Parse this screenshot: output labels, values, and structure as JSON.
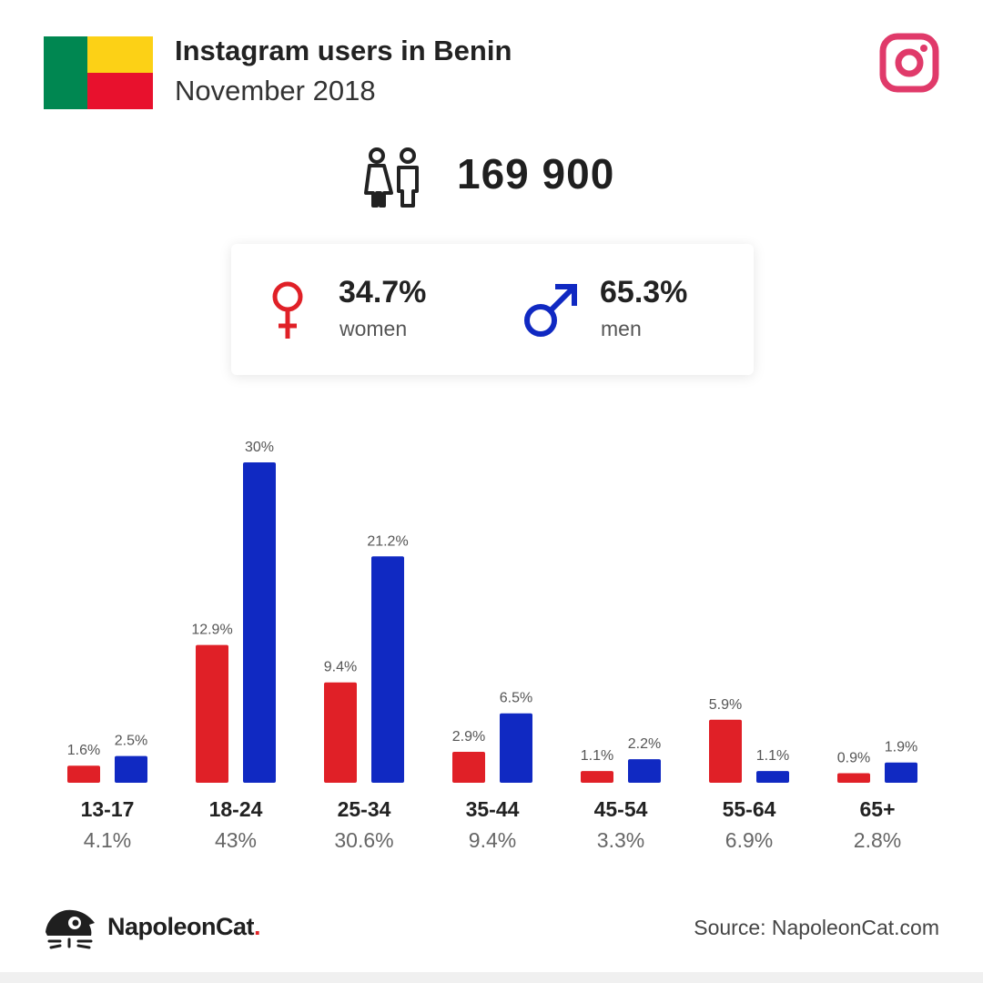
{
  "header": {
    "title": "Instagram users in Benin",
    "subtitle": "November 2018"
  },
  "icons": {
    "flag": "benin-flag-icon",
    "platform": "instagram-icon",
    "people": "people-icon",
    "female": "female-symbol-icon",
    "male": "male-symbol-icon",
    "logo": "napoleoncat-logo-icon"
  },
  "total_users": "169 900",
  "gender": {
    "women": {
      "pct": "34.7%",
      "label": "women"
    },
    "men": {
      "pct": "65.3%",
      "label": "men"
    }
  },
  "colors": {
    "women": "#e02027",
    "men": "#1029c2",
    "instagram": "#e03a6a",
    "flag_green": "#008751",
    "flag_yellow": "#fcd116",
    "flag_red": "#e8112d"
  },
  "chart_data": {
    "type": "bar",
    "categories": [
      "13-17",
      "18-24",
      "25-34",
      "35-44",
      "45-54",
      "55-64",
      "65+"
    ],
    "category_totals": [
      "4.1%",
      "43%",
      "30.6%",
      "9.4%",
      "3.3%",
      "6.9%",
      "2.8%"
    ],
    "series": [
      {
        "name": "women",
        "values": [
          1.6,
          12.9,
          9.4,
          2.9,
          1.1,
          5.9,
          0.9
        ],
        "labels": [
          "1.6%",
          "12.9%",
          "9.4%",
          "2.9%",
          "1.1%",
          "5.9%",
          "0.9%"
        ]
      },
      {
        "name": "men",
        "values": [
          2.5,
          30,
          21.2,
          6.5,
          2.2,
          1.1,
          1.9
        ],
        "labels": [
          "2.5%",
          "30%",
          "21.2%",
          "6.5%",
          "2.2%",
          "1.1%",
          "1.9%"
        ]
      }
    ],
    "ylim": [
      0,
      30
    ],
    "grid": false,
    "unit": "%"
  },
  "footer": {
    "brand": "NapoleonCat",
    "brand_dot": ".",
    "source": "Source: NapoleonCat.com"
  }
}
